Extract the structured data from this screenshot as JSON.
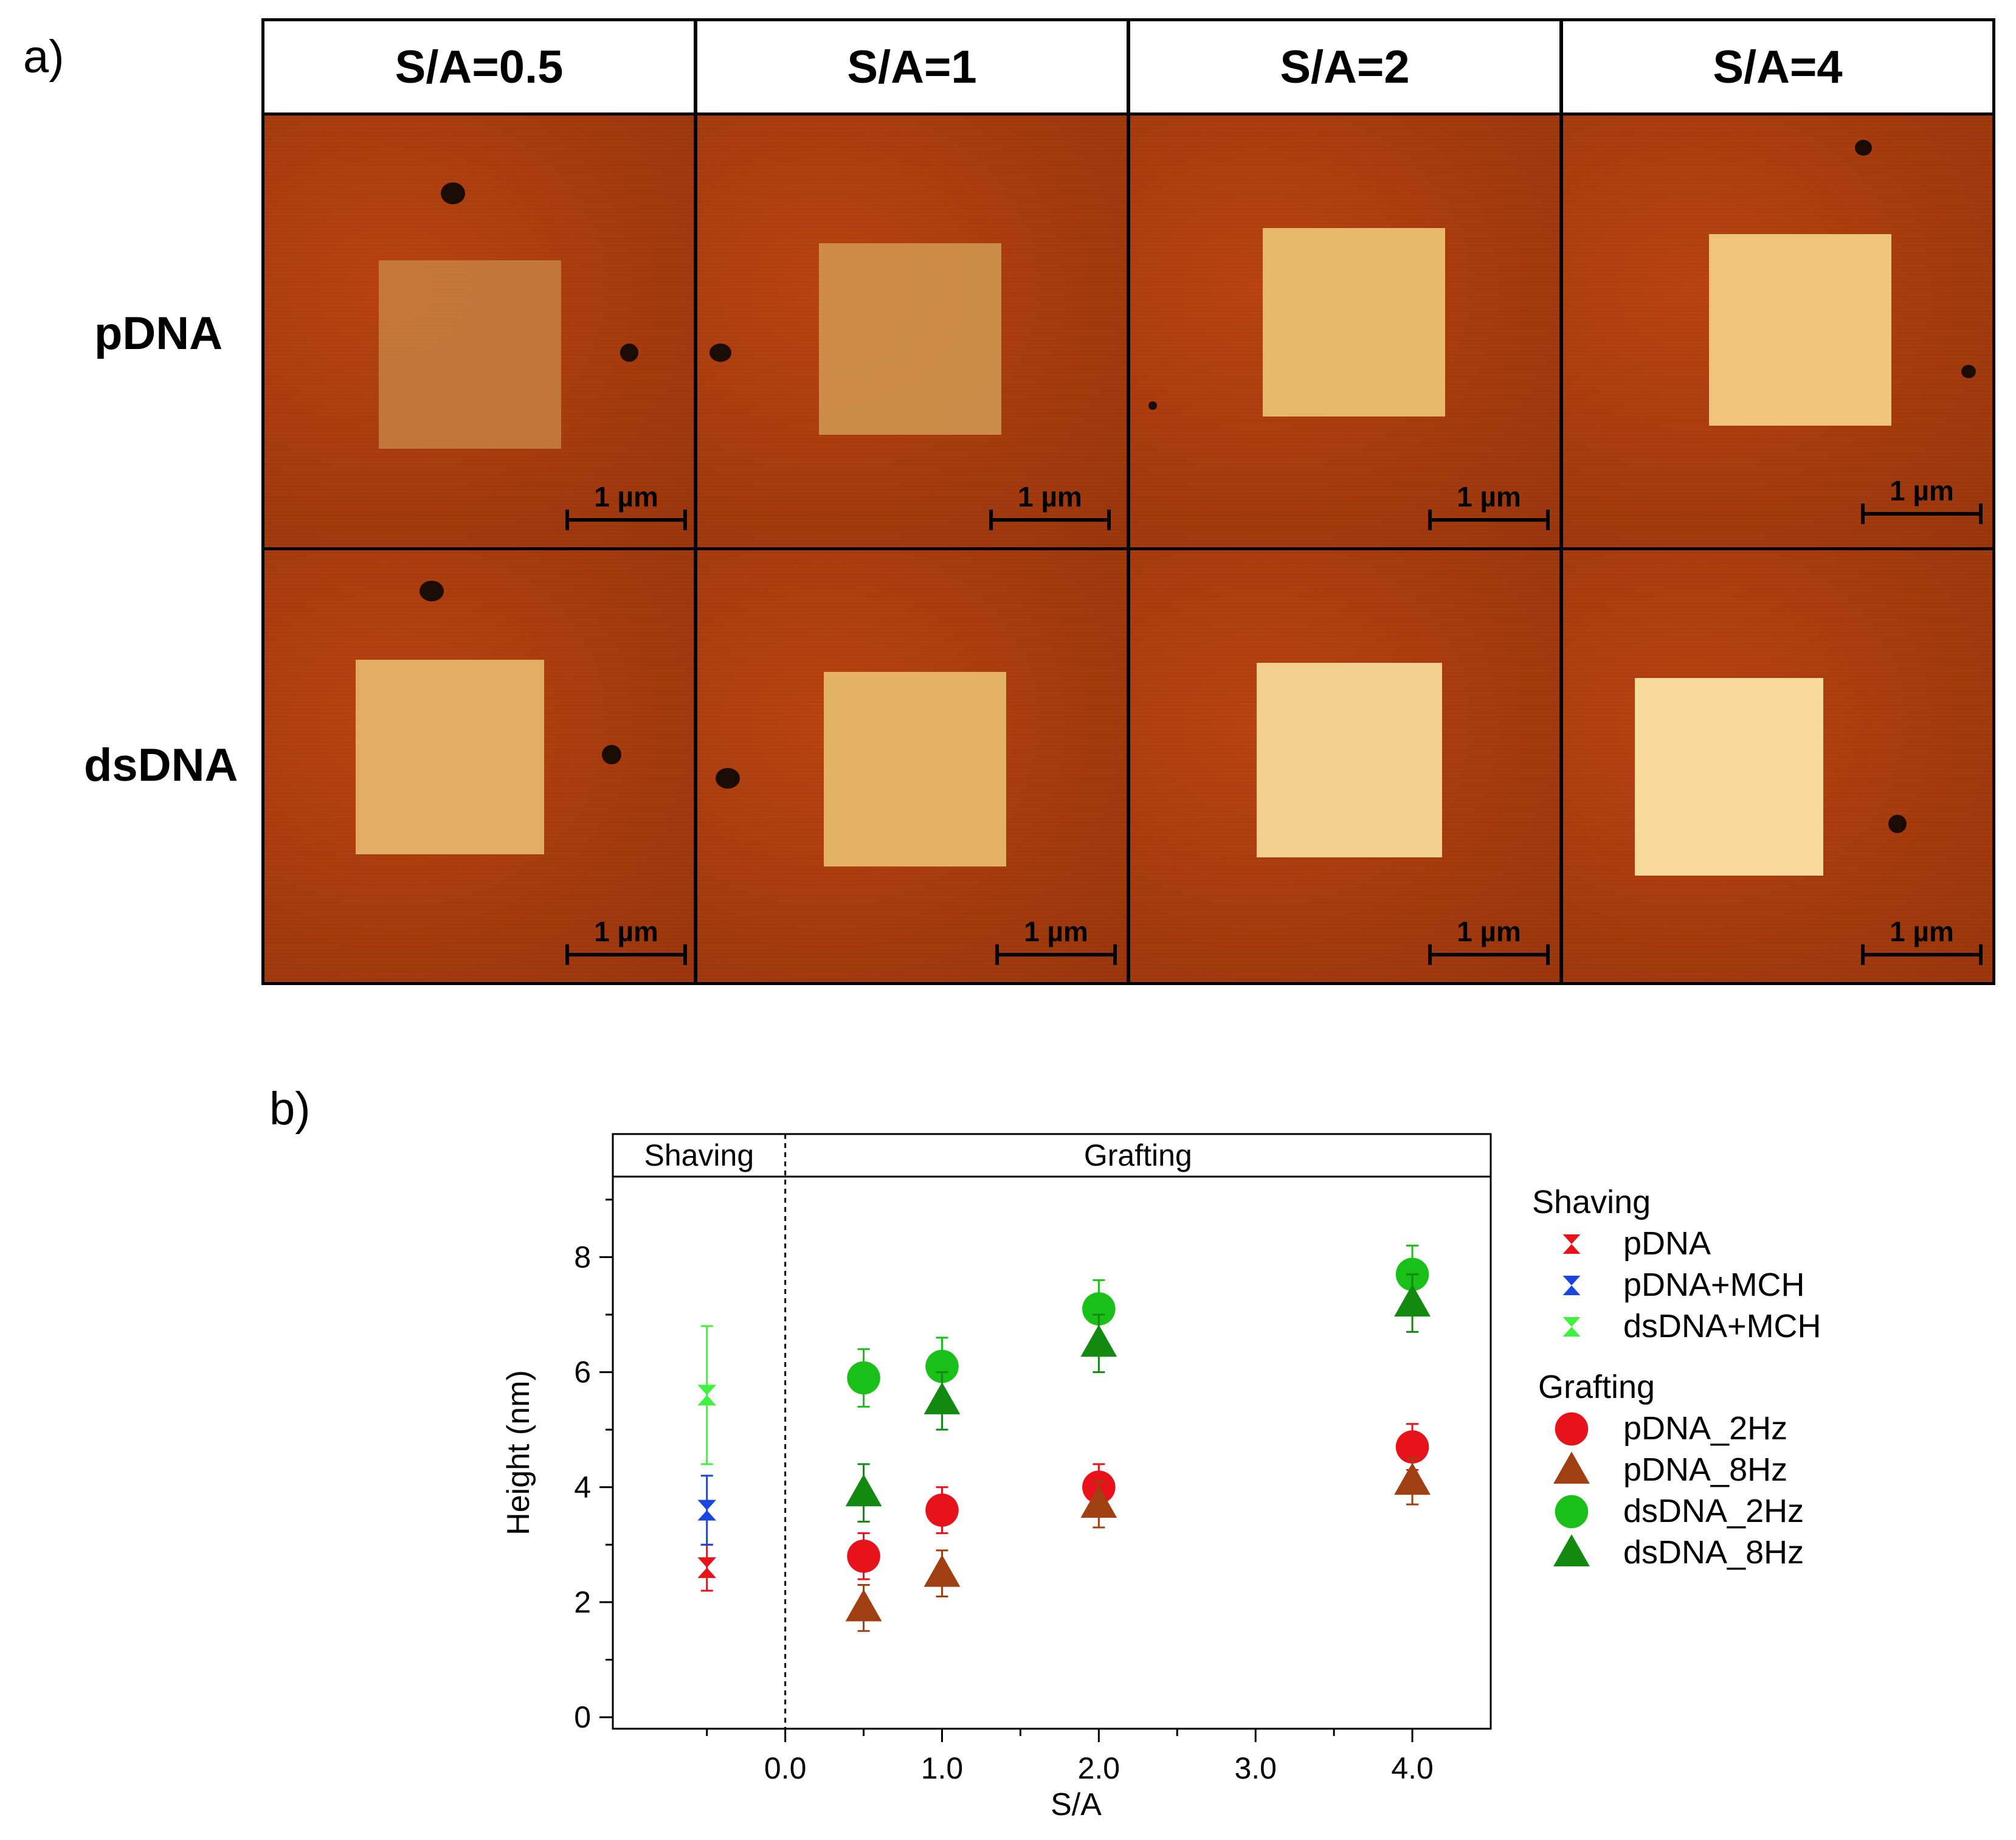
{
  "panel_a": {
    "letter": "a)",
    "columns": [
      "S/A=0.5",
      "S/A=1",
      "S/A=2",
      "S/A=4"
    ],
    "rows": [
      "pDNA",
      "dsDNA"
    ],
    "scale_bar_label": "1 µm"
  },
  "panel_b": {
    "letter": "b)"
  },
  "colors": {
    "pdna_shaving": "#e8121a",
    "pdna_mch": "#1a46e0",
    "dsdna_mch": "#3ff23f",
    "pdna_2hz": "#e8121a",
    "pdna_8hz": "#a04012",
    "dsdna_2hz": "#18c018",
    "dsdna_8hz": "#128a12",
    "afm_substrate": "#a63a0c",
    "afm_patch": "#f0c778"
  },
  "chart_data": {
    "type": "scatter",
    "xlabel": "S/A",
    "ylabel": "Height (nm)",
    "xlim": [
      -1.1,
      4.5
    ],
    "ylim": [
      -0.2,
      9.4
    ],
    "x_ticks": [
      0.0,
      1.0,
      2.0,
      3.0,
      4.0
    ],
    "x_tick_labels": [
      "0.0",
      "1.0",
      "2.0",
      "3.0",
      "4.0"
    ],
    "y_ticks": [
      0,
      2,
      4,
      6,
      8
    ],
    "y_tick_labels": [
      "0",
      "2",
      "4",
      "6",
      "8"
    ],
    "regions": [
      {
        "label": "Shaving",
        "x_range": [
          -1.1,
          0.0
        ]
      },
      {
        "label": "Grafting",
        "x_range": [
          0.0,
          4.5
        ]
      }
    ],
    "divider_x": 0.0,
    "legend_groups": [
      {
        "title": "Shaving",
        "series": [
          "pDNA",
          "pDNA+MCH",
          "dsDNA+MCH"
        ]
      },
      {
        "title": "Grafting",
        "series": [
          "pDNA_2Hz",
          "pDNA_8Hz",
          "dsDNA_2Hz",
          "dsDNA_8Hz"
        ]
      }
    ],
    "series": [
      {
        "name": "pDNA",
        "group": "Shaving",
        "marker": "bowtie",
        "color": "#e8121a",
        "points": [
          {
            "x": -0.5,
            "y": 2.6,
            "err": 0.4
          }
        ]
      },
      {
        "name": "pDNA+MCH",
        "group": "Shaving",
        "marker": "bowtie",
        "color": "#1a46e0",
        "points": [
          {
            "x": -0.5,
            "y": 3.6,
            "err": 0.6
          }
        ]
      },
      {
        "name": "dsDNA+MCH",
        "group": "Shaving",
        "marker": "bowtie",
        "color": "#3ff23f",
        "points": [
          {
            "x": -0.5,
            "y": 5.6,
            "err": 1.2
          }
        ]
      },
      {
        "name": "pDNA_2Hz",
        "group": "Grafting",
        "marker": "circle",
        "color": "#e8121a",
        "points": [
          {
            "x": 0.5,
            "y": 2.8,
            "err": 0.4
          },
          {
            "x": 1.0,
            "y": 3.6,
            "err": 0.4
          },
          {
            "x": 2.0,
            "y": 4.0,
            "err": 0.4
          },
          {
            "x": 4.0,
            "y": 4.7,
            "err": 0.4
          }
        ]
      },
      {
        "name": "pDNA_8Hz",
        "group": "Grafting",
        "marker": "triangle",
        "color": "#a04012",
        "points": [
          {
            "x": 0.5,
            "y": 1.9,
            "err": 0.4
          },
          {
            "x": 1.0,
            "y": 2.5,
            "err": 0.4
          },
          {
            "x": 2.0,
            "y": 3.7,
            "err": 0.4
          },
          {
            "x": 4.0,
            "y": 4.1,
            "err": 0.4
          }
        ]
      },
      {
        "name": "dsDNA_2Hz",
        "group": "Grafting",
        "marker": "circle",
        "color": "#18c018",
        "points": [
          {
            "x": 0.5,
            "y": 5.9,
            "err": 0.5
          },
          {
            "x": 1.0,
            "y": 6.1,
            "err": 0.5
          },
          {
            "x": 2.0,
            "y": 7.1,
            "err": 0.5
          },
          {
            "x": 4.0,
            "y": 7.7,
            "err": 0.5
          }
        ]
      },
      {
        "name": "dsDNA_8Hz",
        "group": "Grafting",
        "marker": "triangle",
        "color": "#128a12",
        "points": [
          {
            "x": 0.5,
            "y": 3.9,
            "err": 0.5
          },
          {
            "x": 1.0,
            "y": 5.5,
            "err": 0.5
          },
          {
            "x": 2.0,
            "y": 6.5,
            "err": 0.5
          },
          {
            "x": 4.0,
            "y": 7.2,
            "err": 0.5
          }
        ]
      }
    ]
  }
}
